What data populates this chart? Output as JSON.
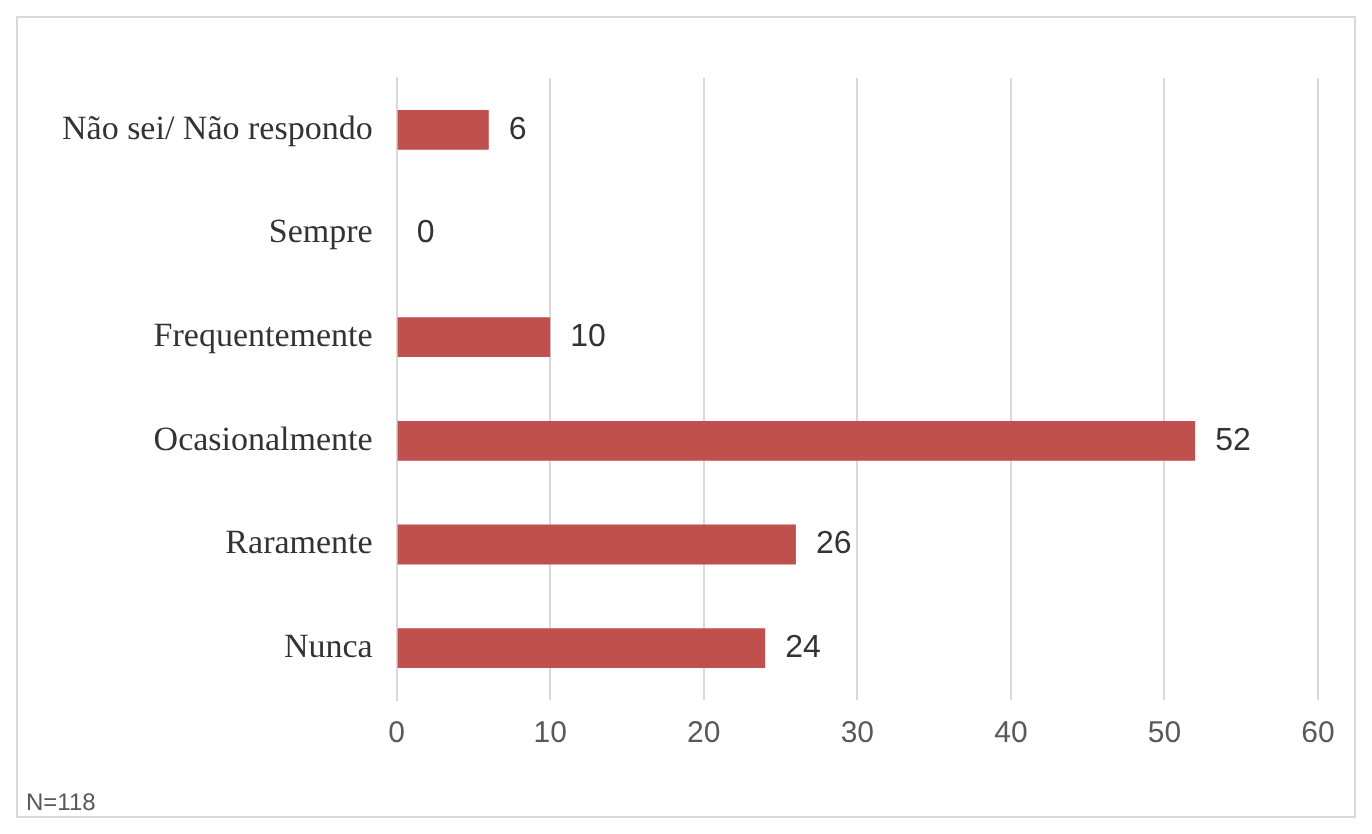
{
  "chart_data": {
    "type": "bar",
    "orientation": "horizontal",
    "categories": [
      "Não sei/ Não respondo",
      "Sempre",
      "Frequentemente",
      "Ocasionalmente",
      "Raramente",
      "Nunca"
    ],
    "values": [
      6,
      0,
      10,
      52,
      26,
      24
    ],
    "color": "#c0504d",
    "xlim": [
      0,
      60
    ],
    "xticks": [
      0,
      10,
      20,
      30,
      40,
      50,
      60
    ],
    "grid": "x",
    "data_labels": true,
    "legend": false,
    "annotations": [
      "N=118"
    ]
  }
}
